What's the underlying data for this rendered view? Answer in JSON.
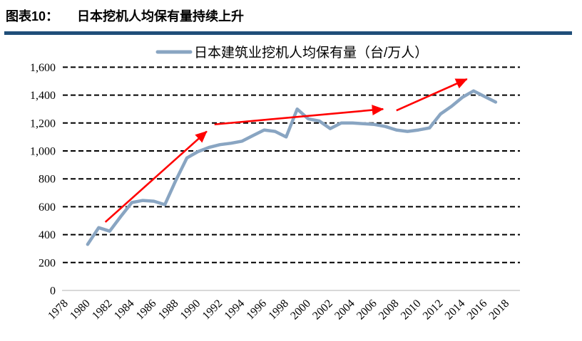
{
  "header": {
    "figure_label": "图表10：",
    "title": "日本挖机人均保有量持续上升",
    "rule_color": "#1F4E79"
  },
  "chart_data": {
    "type": "line",
    "title": "",
    "legend": {
      "label": "日本建筑业挖机人均保有量（台/万人）",
      "position": "top-center"
    },
    "series": [
      {
        "name": "日本建筑业挖机人均保有量（台/万人）",
        "color": "#89A5C2",
        "x": [
          1980,
          1981,
          1982,
          1983,
          1984,
          1985,
          1986,
          1987,
          1988,
          1989,
          1990,
          1991,
          1992,
          1993,
          1994,
          1995,
          1996,
          1997,
          1998,
          1999,
          2000,
          2001,
          2002,
          2003,
          2004,
          2005,
          2006,
          2007,
          2008,
          2009,
          2010,
          2011,
          2012,
          2013,
          2014,
          2015,
          2016,
          2017
        ],
        "values": [
          330,
          450,
          425,
          530,
          630,
          645,
          640,
          615,
          790,
          950,
          995,
          1025,
          1045,
          1055,
          1070,
          1110,
          1150,
          1140,
          1100,
          1300,
          1230,
          1215,
          1160,
          1200,
          1200,
          1195,
          1190,
          1175,
          1150,
          1140,
          1150,
          1165,
          1265,
          1320,
          1385,
          1430,
          1390,
          1350
        ]
      }
    ],
    "x_axis": {
      "range": [
        1978,
        2018
      ],
      "ticks": [
        1978,
        1980,
        1982,
        1984,
        1986,
        1988,
        1990,
        1992,
        1994,
        1996,
        1998,
        2000,
        2002,
        2004,
        2006,
        2008,
        2010,
        2012,
        2014,
        2016,
        2018
      ],
      "label_rotation_deg": -45
    },
    "y_axis": {
      "min": 0,
      "max": 1600,
      "tick_step": 200,
      "tick_labels": [
        "0",
        "200",
        "400",
        "600",
        "800",
        "1,000",
        "1,200",
        "1,400",
        "1,600"
      ]
    },
    "grid": {
      "horizontal": true,
      "style": "dashed",
      "color": "#000000",
      "zero_line_color": "#D9D9D9"
    },
    "annotations": {
      "arrow_color": "#FF0000",
      "arrows": [
        {
          "from": [
            1981.6,
            490
          ],
          "to": [
            1990.8,
            1140
          ]
        },
        {
          "from": [
            1991.5,
            1190
          ],
          "to": [
            2006.8,
            1300
          ]
        },
        {
          "from": [
            2008.0,
            1290
          ],
          "to": [
            2014.4,
            1515
          ]
        }
      ]
    }
  }
}
